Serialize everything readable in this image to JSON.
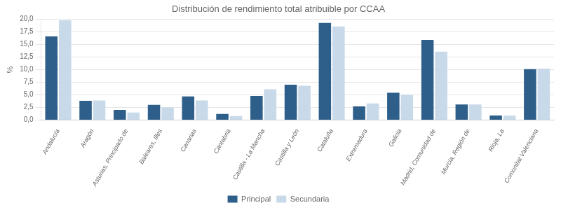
{
  "chart_data": {
    "type": "bar",
    "title": "Distribución de rendimiento total atribuible por CCAA",
    "ylabel": "%",
    "categories": [
      "Andalucía",
      "Aragón",
      "Asturias, Principado de",
      "Baleares, Illes",
      "Canarias",
      "Cantabria",
      "Castilla - La Mancha",
      "Castilla y León",
      "Cataluña",
      "Extremadura",
      "Galicia",
      "Madrid, Comunidad de",
      "Murcia, Región de",
      "Rioja, La",
      "Comunitat Valenciana"
    ],
    "series": [
      {
        "name": "Principal",
        "color": "#2E5F8A",
        "values": [
          16.6,
          3.8,
          2.0,
          3.0,
          4.7,
          1.2,
          4.8,
          7.0,
          19.3,
          2.7,
          5.4,
          15.9,
          3.1,
          0.9,
          10.1
        ]
      },
      {
        "name": "Secundaria",
        "color": "#C8D9EA",
        "values": [
          19.8,
          3.9,
          1.5,
          2.5,
          3.9,
          0.8,
          6.1,
          6.8,
          18.6,
          3.3,
          5.0,
          13.6,
          3.1,
          0.9,
          10.2
        ]
      }
    ],
    "ylim": [
      0,
      20
    ],
    "yticks": [
      {
        "value": 0.0,
        "label": "0,0"
      },
      {
        "value": 2.5,
        "label": "2,5"
      },
      {
        "value": 5.0,
        "label": "5,0"
      },
      {
        "value": 7.5,
        "label": "7,5"
      },
      {
        "value": 10.0,
        "label": "10,0"
      },
      {
        "value": 12.5,
        "label": "12,5"
      },
      {
        "value": 15.0,
        "label": "15,0"
      },
      {
        "value": 17.5,
        "label": "17,5"
      },
      {
        "value": 20.0,
        "label": "20,0"
      }
    ],
    "grid": true,
    "legend": "bottom"
  }
}
